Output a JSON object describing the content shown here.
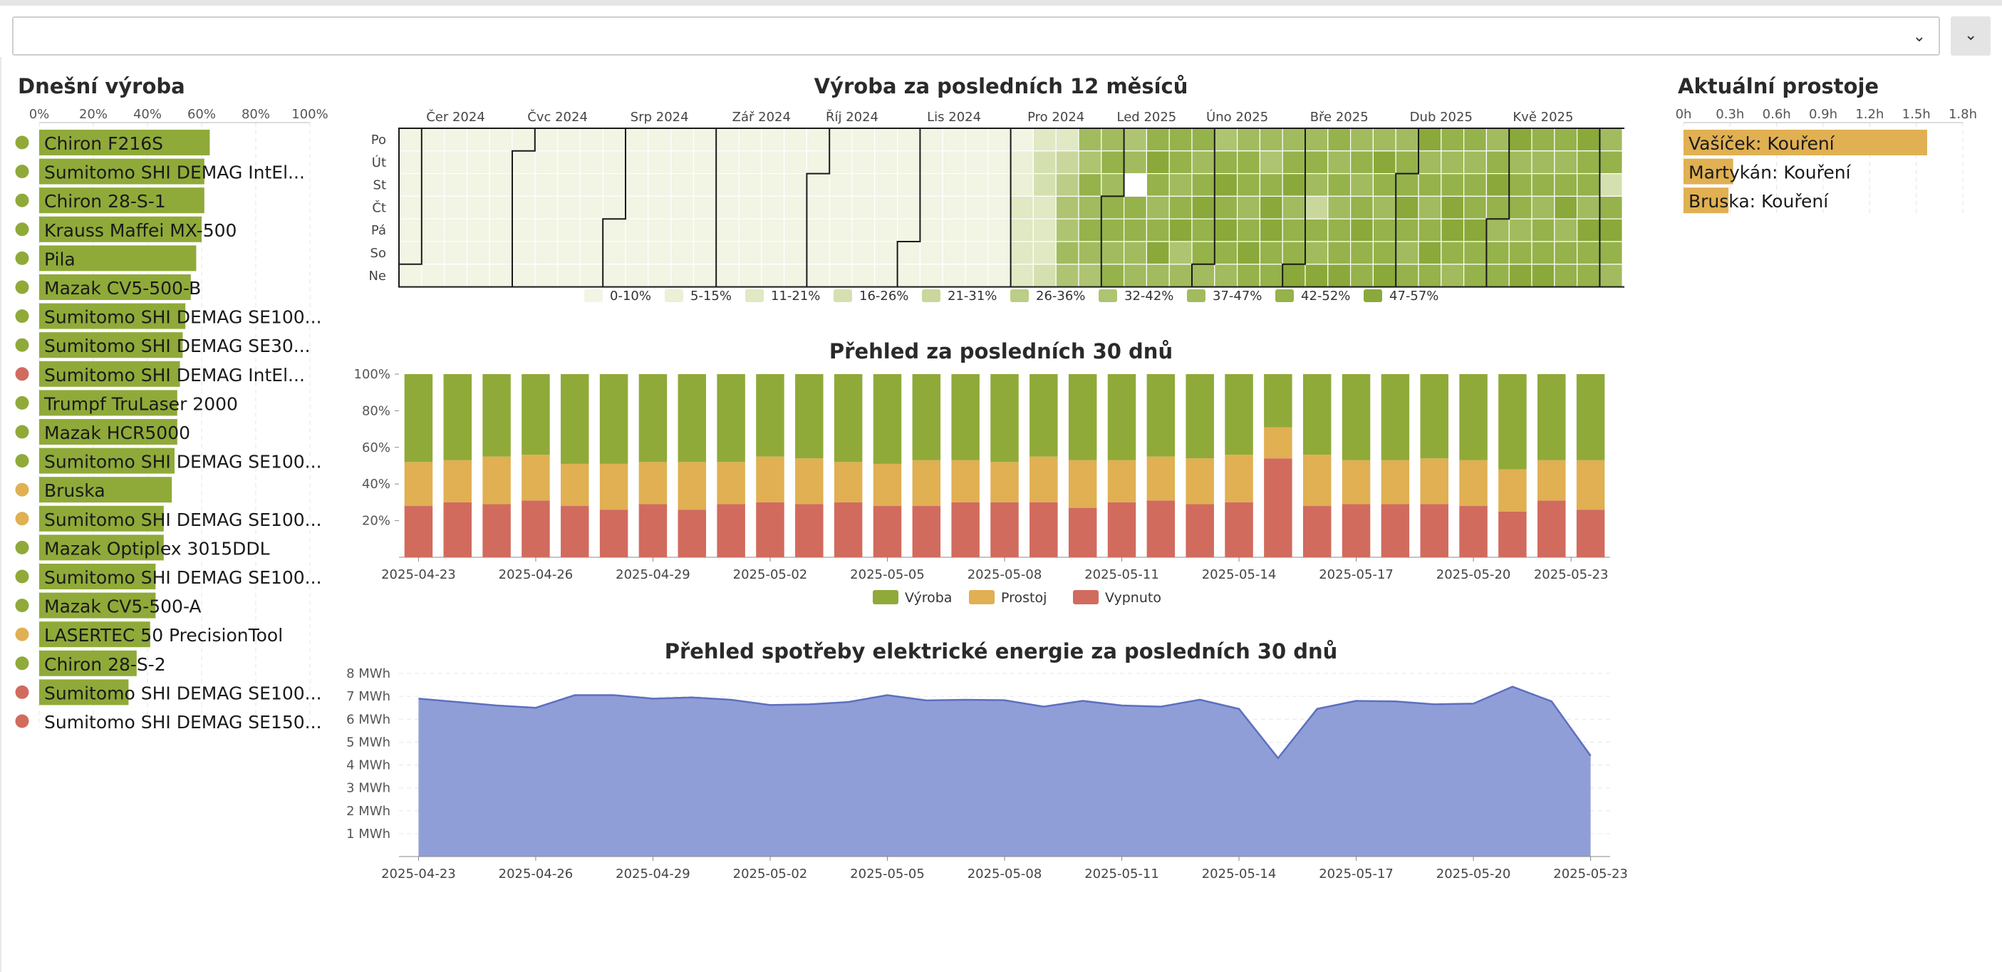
{
  "filter": {
    "value": ""
  },
  "colors": {
    "production": "#8faa39",
    "idle": "#e0b052",
    "off": "#d16b5e",
    "energy": "#8a99d6",
    "energy_line": "#5d6fbf"
  },
  "today": {
    "title": "Dnešní výroba",
    "axis": [
      "0%",
      "20%",
      "40%",
      "60%",
      "80%",
      "100%"
    ],
    "machines": [
      {
        "name": "Chiron F216S",
        "pct": 63,
        "status": "production"
      },
      {
        "name": "Sumitomo SHI DEMAG IntEl...",
        "pct": 61,
        "status": "production"
      },
      {
        "name": "Chiron 28-S-1",
        "pct": 61,
        "status": "production"
      },
      {
        "name": "Krauss Maffei MX-500",
        "pct": 60,
        "status": "production"
      },
      {
        "name": "Pila",
        "pct": 58,
        "status": "production"
      },
      {
        "name": "Mazak CV5-500-B",
        "pct": 56,
        "status": "production"
      },
      {
        "name": "Sumitomo SHI DEMAG SE100...",
        "pct": 54,
        "status": "production"
      },
      {
        "name": "Sumitomo SHI DEMAG SE30...",
        "pct": 53,
        "status": "production"
      },
      {
        "name": "Sumitomo SHI DEMAG IntEl...",
        "pct": 52,
        "status": "off"
      },
      {
        "name": "Trumpf TruLaser 2000",
        "pct": 51,
        "status": "production"
      },
      {
        "name": "Mazak HCR5000",
        "pct": 51,
        "status": "production"
      },
      {
        "name": "Sumitomo SHI DEMAG SE100...",
        "pct": 50,
        "status": "production"
      },
      {
        "name": "Bruska",
        "pct": 49,
        "status": "idle"
      },
      {
        "name": "Sumitomo SHI DEMAG SE100...",
        "pct": 46,
        "status": "idle"
      },
      {
        "name": "Mazak Optiplex 3015DDL",
        "pct": 46,
        "status": "production"
      },
      {
        "name": "Sumitomo SHI DEMAG SE100...",
        "pct": 43,
        "status": "production"
      },
      {
        "name": "Mazak CV5-500-A",
        "pct": 43,
        "status": "production"
      },
      {
        "name": "LASERTEC 50 PrecisionTool",
        "pct": 41,
        "status": "idle"
      },
      {
        "name": "Chiron 28-S-2",
        "pct": 36,
        "status": "production"
      },
      {
        "name": "Sumitomo SHI DEMAG SE100...",
        "pct": 33,
        "status": "off"
      },
      {
        "name": "Sumitomo SHI DEMAG SE150...",
        "pct": 0,
        "status": "off"
      }
    ]
  },
  "heatmap": {
    "title": "Výroba za posledních 12 měsíců",
    "months": [
      "Čer 2024",
      "Čvc 2024",
      "Srp 2024",
      "Zář 2024",
      "Říj 2024",
      "Lis 2024",
      "Pro 2024",
      "Led 2025",
      "Úno 2025",
      "Bře 2025",
      "Dub 2025",
      "Kvě 2025"
    ],
    "days": [
      "Po",
      "Út",
      "St",
      "Čt",
      "Pá",
      "So",
      "Ne"
    ],
    "legend": [
      "0-10%",
      "5-15%",
      "11-21%",
      "16-26%",
      "21-31%",
      "26-36%",
      "32-42%",
      "37-47%",
      "42-52%",
      "47-57%"
    ]
  },
  "downtime": {
    "title": "Aktuální prostoje",
    "axis": [
      "0h",
      "0.3h",
      "0.6h",
      "0.9h",
      "1.2h",
      "1.5h",
      "1.8h"
    ],
    "axis_max": 1.8,
    "items": [
      {
        "label": "Vašíček: Kouření",
        "hours": 1.57
      },
      {
        "label": "Martykán: Kouření",
        "hours": 0.32
      },
      {
        "label": "Bruska: Kouření",
        "hours": 0.29
      }
    ]
  },
  "overview": {
    "title": "Přehled za posledních 30 dnů",
    "yticks": [
      "100%",
      "80%",
      "60%",
      "40%",
      "20%"
    ],
    "xticks": [
      "2025-04-23",
      "2025-04-26",
      "2025-04-29",
      "2025-05-02",
      "2025-05-05",
      "2025-05-08",
      "2025-05-11",
      "2025-05-14",
      "2025-05-17",
      "2025-05-20",
      "2025-05-23"
    ],
    "legend": [
      "Výroba",
      "Prostoj",
      "Vypnuto"
    ]
  },
  "energy": {
    "title": "Přehled spotřeby elektrické energie za posledních 30 dnů",
    "yticks": [
      "8 MWh",
      "7 MWh",
      "6 MWh",
      "5 MWh",
      "4 MWh",
      "3 MWh",
      "2 MWh",
      "1 MWh"
    ],
    "xticks": [
      "2025-04-23",
      "2025-04-26",
      "2025-04-29",
      "2025-05-02",
      "2025-05-05",
      "2025-05-08",
      "2025-05-11",
      "2025-05-14",
      "2025-05-17",
      "2025-05-20",
      "2025-05-23"
    ]
  },
  "chart_data": [
    {
      "type": "bar",
      "title": "Přehled za posledních 30 dnů",
      "xlabel": "",
      "ylabel": "",
      "ylim": [
        0,
        100
      ],
      "categories": [
        "2025-04-23",
        "2025-04-24",
        "2025-04-25",
        "2025-04-26",
        "2025-04-27",
        "2025-04-28",
        "2025-04-29",
        "2025-04-30",
        "2025-05-01",
        "2025-05-02",
        "2025-05-03",
        "2025-05-04",
        "2025-05-05",
        "2025-05-06",
        "2025-05-07",
        "2025-05-08",
        "2025-05-09",
        "2025-05-10",
        "2025-05-11",
        "2025-05-12",
        "2025-05-13",
        "2025-05-14",
        "2025-05-15",
        "2025-05-16",
        "2025-05-17",
        "2025-05-18",
        "2025-05-19",
        "2025-05-20",
        "2025-05-21",
        "2025-05-22",
        "2025-05-23"
      ],
      "series": [
        {
          "name": "Vypnuto",
          "values": [
            28,
            30,
            29,
            31,
            28,
            26,
            29,
            26,
            29,
            30,
            29,
            30,
            28,
            28,
            30,
            30,
            30,
            27,
            30,
            31,
            29,
            30,
            54,
            28,
            29,
            29,
            29,
            28,
            25,
            31,
            26
          ]
        },
        {
          "name": "Prostoj",
          "values": [
            24,
            23,
            26,
            25,
            23,
            25,
            23,
            26,
            23,
            25,
            25,
            22,
            23,
            25,
            23,
            22,
            25,
            26,
            23,
            24,
            25,
            26,
            17,
            28,
            24,
            24,
            25,
            25,
            23,
            22,
            27
          ]
        },
        {
          "name": "Výroba",
          "values": [
            48,
            47,
            45,
            44,
            49,
            49,
            48,
            48,
            48,
            45,
            46,
            48,
            49,
            47,
            47,
            48,
            45,
            47,
            47,
            45,
            46,
            44,
            29,
            44,
            47,
            47,
            46,
            47,
            52,
            47,
            47
          ]
        }
      ],
      "stacked": true
    },
    {
      "type": "area",
      "title": "Přehled spotřeby elektrické energie za posledních 30 dnů",
      "xlabel": "",
      "ylabel": "MWh",
      "ylim": [
        0,
        8
      ],
      "x": [
        "2025-04-23",
        "2025-04-24",
        "2025-04-25",
        "2025-04-26",
        "2025-04-27",
        "2025-04-28",
        "2025-04-29",
        "2025-04-30",
        "2025-05-01",
        "2025-05-02",
        "2025-05-03",
        "2025-05-04",
        "2025-05-05",
        "2025-05-06",
        "2025-05-07",
        "2025-05-08",
        "2025-05-09",
        "2025-05-10",
        "2025-05-11",
        "2025-05-12",
        "2025-05-13",
        "2025-05-14",
        "2025-05-15",
        "2025-05-16",
        "2025-05-17",
        "2025-05-18",
        "2025-05-19",
        "2025-05-20",
        "2025-05-21",
        "2025-05-22",
        "2025-05-23"
      ],
      "values": [
        6.9,
        6.75,
        6.6,
        6.5,
        7.05,
        7.05,
        6.9,
        6.95,
        6.85,
        6.62,
        6.65,
        6.75,
        7.05,
        6.82,
        6.85,
        6.83,
        6.55,
        6.8,
        6.6,
        6.55,
        6.85,
        6.45,
        4.3,
        6.45,
        6.8,
        6.78,
        6.65,
        6.68,
        7.42,
        6.78,
        4.4
      ]
    },
    {
      "type": "heatmap",
      "title": "Výroba za posledních 12 měsíců",
      "rows": [
        "Po",
        "Út",
        "St",
        "Čt",
        "Pá",
        "So",
        "Ne"
      ],
      "months": [
        "Čer 2024",
        "Čvc 2024",
        "Srp 2024",
        "Zář 2024",
        "Říj 2024",
        "Lis 2024",
        "Pro 2024",
        "Led 2025",
        "Úno 2025",
        "Bře 2025",
        "Dub 2025",
        "Kvě 2025"
      ],
      "start_date": "2024-05-26",
      "levels": [
        0,
        0,
        0,
        0,
        0,
        0,
        0,
        0,
        0,
        0,
        0,
        0,
        0,
        0,
        0,
        0,
        0,
        0,
        0,
        0,
        0,
        0,
        0,
        0,
        0,
        0,
        0,
        0,
        0,
        0,
        0,
        0,
        0,
        0,
        0,
        0,
        0,
        0,
        0,
        0,
        0,
        0,
        0,
        0,
        0,
        0,
        0,
        0,
        0,
        0,
        0,
        0,
        0,
        0,
        0,
        0,
        0,
        0,
        0,
        0,
        0,
        0,
        0,
        0,
        0,
        0,
        0,
        0,
        0,
        0,
        0,
        0,
        0,
        0,
        0,
        0,
        0,
        0,
        0,
        0,
        0,
        0,
        0,
        0,
        0,
        0,
        0,
        0,
        0,
        0,
        0,
        0,
        0,
        0,
        0,
        0,
        0,
        0,
        0,
        0,
        0,
        0,
        0,
        0,
        0,
        0,
        0,
        0,
        0,
        0,
        0,
        0,
        0,
        0,
        0,
        0,
        0,
        0,
        0,
        0,
        0,
        0,
        0,
        0,
        0,
        0,
        0,
        0,
        0,
        0,
        0,
        0,
        0,
        0,
        0,
        0,
        0,
        0,
        0,
        0,
        0,
        0,
        0,
        0,
        0,
        0,
        0,
        0,
        0,
        0,
        0,
        0,
        0,
        0,
        0,
        0,
        0,
        0,
        0,
        0,
        0,
        0,
        0,
        0,
        0,
        0,
        0,
        0,
        0,
        0,
        0,
        0,
        0,
        0,
        0,
        0,
        0,
        0,
        0,
        0,
        0,
        0,
        0,
        0,
        0,
        0,
        0,
        0,
        0,
        0,
        1,
        1,
        2,
        2,
        2,
        2,
        2,
        3,
        3,
        2,
        2,
        2,
        3,
        2,
        4,
        5,
        6,
        6,
        7,
        6,
        7,
        6,
        8,
        7,
        8,
        7,
        6,
        7,
        8,
        7,
        8,
        8,
        7,
        8,
        6,
        7,
        -1,
        8,
        8,
        7,
        7,
        8,
        9,
        8,
        7,
        8,
        9,
        7,
        8,
        8,
        7,
        8,
        9,
        6,
        7,
        8,
        7,
        8,
        9,
        8,
        8,
        7,
        6,
        8,
        9,
        8,
        9,
        8,
        7,
        7,
        8,
        8,
        7,
        8,
        9,
        8,
        7,
        6,
        8,
        9,
        9,
        8,
        8,
        7,
        8,
        9,
        7,
        8,
        8,
        9,
        7,
        8,
        7,
        4,
        8,
        7,
        9,
        8,
        7,
        8,
        7,
        8,
        8,
        9,
        7,
        8,
        7,
        8,
        9,
        8,
        8,
        7,
        9,
        8,
        7,
        8,
        8,
        9,
        7,
        8,
        8,
        9,
        8,
        7,
        8,
        9,
        7,
        8,
        7,
        8,
        9,
        8,
        8,
        7,
        8,
        9,
        9,
        8,
        7,
        8,
        7,
        8,
        8,
        9,
        8,
        8,
        7,
        8,
        9,
        8,
        7,
        8,
        8,
        9,
        7,
        8,
        8,
        7,
        8,
        9,
        8,
        7,
        8,
        7,
        8,
        8,
        9,
        8,
        7,
        8,
        9,
        7,
        8,
        8,
        9,
        8,
        8,
        7,
        9,
        8,
        8,
        7,
        8,
        3,
        8,
        9,
        8,
        7,
        -1,
        -1,
        -1,
        -1,
        -1,
        -1,
        -1
      ],
      "scale_legend": [
        "0-10%",
        "5-15%",
        "11-21%",
        "16-26%",
        "21-31%",
        "26-36%",
        "32-42%",
        "37-47%",
        "42-52%",
        "47-57%"
      ]
    }
  ]
}
